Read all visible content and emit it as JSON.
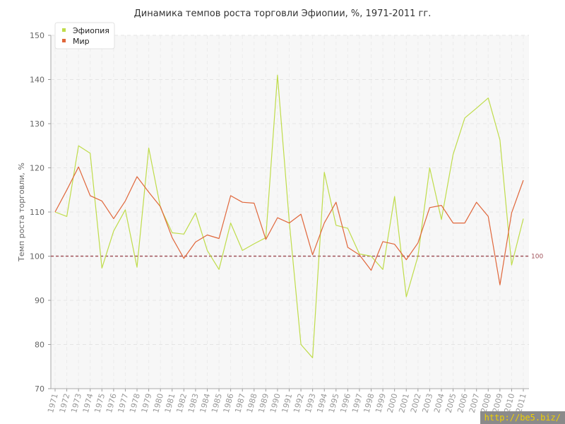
{
  "chart_data": {
    "type": "line",
    "title": "Динамика темпов роста торговли Эфиопии, %, 1971-2011 гг.",
    "ylabel": "Темп роста торговли, %",
    "xlabel": "",
    "ylim": [
      70,
      150
    ],
    "yticks": [
      70,
      80,
      90,
      100,
      110,
      120,
      130,
      140,
      150
    ],
    "x": [
      "1971",
      "1972",
      "1973",
      "1974",
      "1975",
      "1976",
      "1977",
      "1978",
      "1979",
      "1980",
      "1981",
      "1982",
      "1983",
      "1984",
      "1985",
      "1986",
      "1987",
      "1988",
      "1989",
      "1990",
      "1991",
      "1992",
      "1993",
      "1994",
      "1995",
      "1996",
      "1997",
      "1998",
      "1999",
      "2000",
      "2001",
      "2002",
      "2003",
      "2004",
      "2005",
      "2006",
      "2007",
      "2008",
      "2009",
      "2010",
      "2011"
    ],
    "series": [
      {
        "name": "Эфиопия",
        "color": "#bfdc4a",
        "values": [
          110,
          109,
          125,
          123.3,
          97.3,
          105.7,
          110.5,
          97.5,
          124.5,
          111,
          105.3,
          105,
          109.8,
          101.3,
          97,
          107.5,
          101.3,
          102.8,
          104.2,
          141,
          108,
          80,
          77,
          119,
          107,
          106.3,
          100.5,
          100,
          97,
          113.5,
          90.8,
          100,
          120,
          108.3,
          123,
          131.3,
          133.5,
          135.8,
          126.3,
          98,
          108.5
        ]
      },
      {
        "name": "Мир",
        "color": "#e0663a",
        "values": [
          110,
          115,
          120.2,
          113.7,
          112.5,
          108.5,
          112.5,
          118,
          114.5,
          111.2,
          104.2,
          99.5,
          103.2,
          104.8,
          104,
          113.7,
          112.2,
          112,
          103.8,
          108.7,
          107.5,
          109.5,
          100.3,
          107.5,
          112.2,
          102,
          100.3,
          96.8,
          103.3,
          102.7,
          99.2,
          103,
          111,
          111.5,
          107.5,
          107.5,
          112.2,
          109,
          93.5,
          109.8,
          117.2
        ]
      }
    ],
    "reference_line": {
      "value": 100,
      "label": "100",
      "color": "#a0525a"
    },
    "grid": true,
    "legend": "top-left"
  },
  "watermark": "http://be5.biz/"
}
